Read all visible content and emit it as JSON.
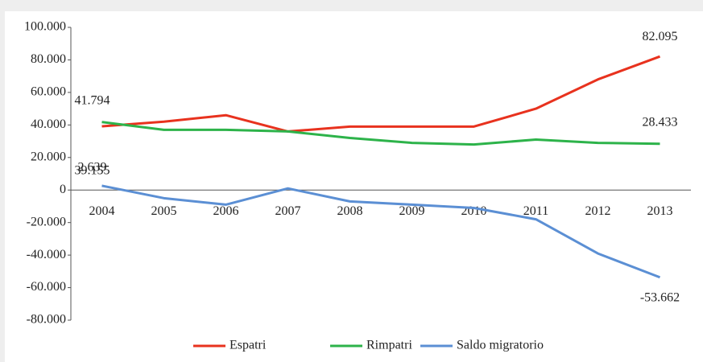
{
  "chart_data": {
    "type": "line",
    "categories": [
      "2004",
      "2005",
      "2006",
      "2007",
      "2008",
      "2009",
      "2010",
      "2011",
      "2012",
      "2013"
    ],
    "series": [
      {
        "name": "Espatri",
        "color": "#e8321e",
        "values": [
          39155,
          42000,
          46000,
          36000,
          39000,
          39000,
          39000,
          50000,
          68000,
          82095
        ],
        "value_labels": [
          "39.155",
          null,
          null,
          null,
          null,
          null,
          null,
          null,
          null,
          "82.095"
        ]
      },
      {
        "name": "Rimpatri",
        "color": "#2db34a",
        "values": [
          41794,
          37000,
          37000,
          36000,
          32000,
          29000,
          28000,
          31000,
          29000,
          28433
        ],
        "value_labels": [
          "41.794",
          null,
          null,
          null,
          null,
          null,
          null,
          null,
          null,
          "28.433"
        ]
      },
      {
        "name": "Saldo migratorio",
        "color": "#5b8fd4",
        "values": [
          2639,
          -5000,
          -9000,
          1000,
          -7000,
          -9000,
          -11000,
          -18000,
          -39000,
          -53662
        ],
        "value_labels": [
          "2.639",
          null,
          null,
          null,
          null,
          null,
          null,
          null,
          null,
          "-53.662"
        ]
      }
    ],
    "ylim": [
      -80000,
      100000
    ],
    "yticks": [
      {
        "value": -80000,
        "label": "-80.000"
      },
      {
        "value": -60000,
        "label": "-60.000"
      },
      {
        "value": -40000,
        "label": "-40.000"
      },
      {
        "value": -20000,
        "label": "-20.000"
      },
      0,
      {
        "value": 20000,
        "label": "20.000"
      },
      {
        "value": 40000,
        "label": "40.000"
      },
      {
        "value": 60000,
        "label": "60.000"
      },
      {
        "value": 80000,
        "label": "80.000"
      },
      {
        "value": 100000,
        "label": "100.000"
      }
    ],
    "grid": false,
    "legend": "bottom"
  }
}
